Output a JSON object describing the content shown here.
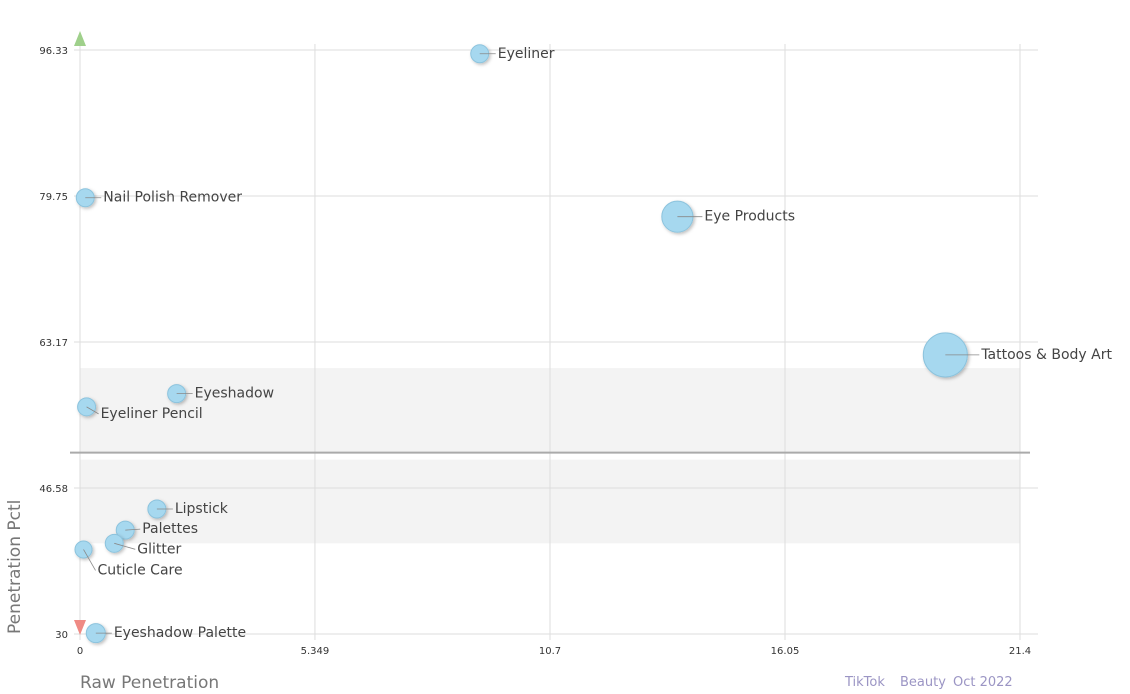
{
  "chart_data": {
    "type": "scatter",
    "xlabel": "Raw Penetration",
    "ylabel": "Penetration Pctl",
    "xlim": [
      0,
      21.4
    ],
    "ylim": [
      30,
      96.33
    ],
    "x_ticks": [
      "0",
      "5.349",
      "10.7",
      "16.05",
      "21.4"
    ],
    "y_ticks": [
      "30",
      "46.58",
      "63.17",
      "79.75",
      "96.33"
    ],
    "grid": true,
    "reference_line_y": 50.6,
    "shaded_bands": [
      [
        40.3,
        49.8
      ],
      [
        50.6,
        60.2
      ]
    ],
    "points": [
      {
        "label": "Eyeliner",
        "x": 9.1,
        "y": 95.9,
        "size": 1
      },
      {
        "label": "Nail Polish Remover",
        "x": 0.12,
        "y": 79.55,
        "size": 1
      },
      {
        "label": "Eye Products",
        "x": 13.6,
        "y": 77.4,
        "size": 3
      },
      {
        "label": "Tattoos & Body Art",
        "x": 19.7,
        "y": 61.7,
        "size": 6
      },
      {
        "label": "Eyeshadow",
        "x": 2.2,
        "y": 57.3,
        "size": 1
      },
      {
        "label": "Eyeliner Pencil",
        "x": 0.15,
        "y": 55.8,
        "size": 1
      },
      {
        "label": "Lipstick",
        "x": 1.75,
        "y": 44.2,
        "size": 1
      },
      {
        "label": "Palettes",
        "x": 1.03,
        "y": 41.8,
        "size": 1
      },
      {
        "label": "Glitter",
        "x": 0.78,
        "y": 40.3,
        "size": 1
      },
      {
        "label": "Cuticle Care",
        "x": 0.08,
        "y": 39.6,
        "size": 0.7
      },
      {
        "label": "Eyeshadow Palette",
        "x": 0.36,
        "y": 30.1,
        "size": 0.9
      }
    ],
    "colors": {
      "bubble": "#a6d8ef",
      "bubble_stroke": "#8cc3dd",
      "grid": "#dddddd",
      "band": "#f3f3f3",
      "reference_line": "#aaaaaa",
      "arrow_up": "#9fd08b",
      "arrow_down": "#ef8a84"
    }
  },
  "footer": {
    "source": "TikTok",
    "category": "Beauty",
    "period": "Oct 2022"
  }
}
